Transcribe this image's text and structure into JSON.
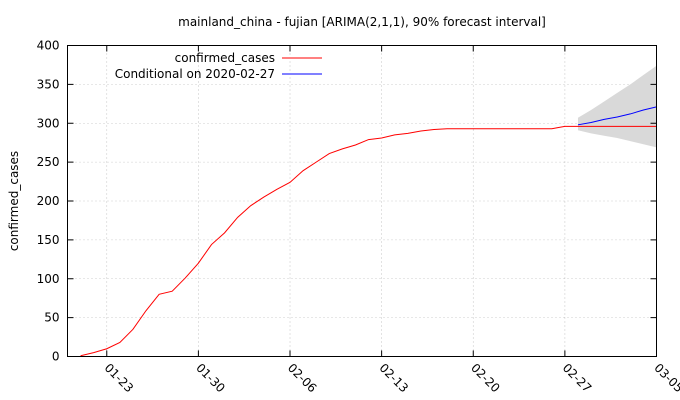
{
  "chart_data": {
    "type": "line",
    "title": "mainland_china - fujian [ARIMA(2,1,1), 90% forecast interval]",
    "ylabel": "confirmed_cases",
    "xlabel": "",
    "x_range": [
      "2020-01-20",
      "2020-03-05"
    ],
    "ylim": [
      0,
      400
    ],
    "y_ticks": [
      0,
      50,
      100,
      150,
      200,
      250,
      300,
      350,
      400
    ],
    "x_ticks": [
      {
        "date": "2020-01-23",
        "label": "01-23"
      },
      {
        "date": "2020-01-30",
        "label": "01-30"
      },
      {
        "date": "2020-02-06",
        "label": "02-06"
      },
      {
        "date": "2020-02-13",
        "label": "02-13"
      },
      {
        "date": "2020-02-20",
        "label": "02-20"
      },
      {
        "date": "2020-02-27",
        "label": "02-27"
      },
      {
        "date": "2020-03-05",
        "label": "03-05"
      }
    ],
    "grid": true,
    "legend_position": "top-left",
    "series": [
      {
        "name": "confirmed_cases",
        "color": "#ff0000",
        "points": [
          [
            "2020-01-21",
            1
          ],
          [
            "2020-01-22",
            5
          ],
          [
            "2020-01-23",
            10
          ],
          [
            "2020-01-24",
            18
          ],
          [
            "2020-01-25",
            35
          ],
          [
            "2020-01-26",
            59
          ],
          [
            "2020-01-27",
            80
          ],
          [
            "2020-01-28",
            84
          ],
          [
            "2020-01-29",
            101
          ],
          [
            "2020-01-30",
            120
          ],
          [
            "2020-01-31",
            144
          ],
          [
            "2020-02-01",
            159
          ],
          [
            "2020-02-02",
            179
          ],
          [
            "2020-02-03",
            194
          ],
          [
            "2020-02-04",
            205
          ],
          [
            "2020-02-05",
            215
          ],
          [
            "2020-02-06",
            224
          ],
          [
            "2020-02-07",
            239
          ],
          [
            "2020-02-08",
            250
          ],
          [
            "2020-02-09",
            261
          ],
          [
            "2020-02-10",
            267
          ],
          [
            "2020-02-11",
            272
          ],
          [
            "2020-02-12",
            279
          ],
          [
            "2020-02-13",
            281
          ],
          [
            "2020-02-14",
            285
          ],
          [
            "2020-02-15",
            287
          ],
          [
            "2020-02-16",
            290
          ],
          [
            "2020-02-17",
            292
          ],
          [
            "2020-02-18",
            293
          ],
          [
            "2020-02-19",
            293
          ],
          [
            "2020-02-20",
            293
          ],
          [
            "2020-02-21",
            293
          ],
          [
            "2020-02-22",
            293
          ],
          [
            "2020-02-23",
            293
          ],
          [
            "2020-02-24",
            293
          ],
          [
            "2020-02-25",
            293
          ],
          [
            "2020-02-26",
            293
          ],
          [
            "2020-02-27",
            296
          ],
          [
            "2020-02-28",
            296
          ],
          [
            "2020-02-29",
            296
          ],
          [
            "2020-03-01",
            296
          ],
          [
            "2020-03-02",
            296
          ],
          [
            "2020-03-03",
            296
          ],
          [
            "2020-03-04",
            296
          ],
          [
            "2020-03-05",
            296
          ]
        ]
      },
      {
        "name": "Conditional on 2020-02-27",
        "color": "#0000ff",
        "points": [
          [
            "2020-02-28",
            298
          ],
          [
            "2020-02-29",
            301
          ],
          [
            "2020-03-01",
            305
          ],
          [
            "2020-03-02",
            308
          ],
          [
            "2020-03-03",
            312
          ],
          [
            "2020-03-04",
            317
          ],
          [
            "2020-03-05",
            321
          ]
        ],
        "interval": {
          "color": "#d9d9d9",
          "lower": [
            [
              "2020-02-28",
              291
            ],
            [
              "2020-02-29",
              287
            ],
            [
              "2020-03-01",
              284
            ],
            [
              "2020-03-02",
              281
            ],
            [
              "2020-03-03",
              277
            ],
            [
              "2020-03-04",
              273
            ],
            [
              "2020-03-05",
              269
            ]
          ],
          "upper": [
            [
              "2020-02-28",
              307
            ],
            [
              "2020-02-29",
              317
            ],
            [
              "2020-03-01",
              328
            ],
            [
              "2020-03-02",
              339
            ],
            [
              "2020-03-03",
              350
            ],
            [
              "2020-03-04",
              362
            ],
            [
              "2020-03-05",
              374
            ]
          ]
        }
      }
    ]
  }
}
